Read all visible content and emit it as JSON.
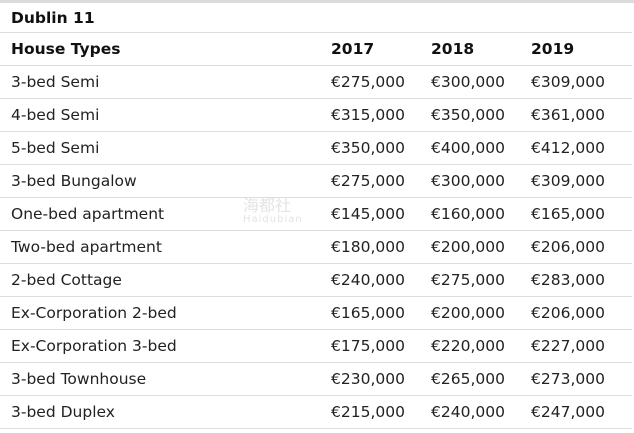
{
  "table": {
    "title": "Dublin 11",
    "headers": [
      "House Types",
      "2017",
      "2018",
      "2019"
    ],
    "rows": [
      [
        "3-bed Semi",
        "€275,000",
        "€300,000",
        "€309,000"
      ],
      [
        "4-bed Semi",
        "€315,000",
        "€350,000",
        "€361,000"
      ],
      [
        "5-bed Semi",
        "€350,000",
        "€400,000",
        "€412,000"
      ],
      [
        "3-bed Bungalow",
        "€275,000",
        "€300,000",
        "€309,000"
      ],
      [
        "One-bed apartment",
        "€145,000",
        "€160,000",
        "€165,000"
      ],
      [
        "Two-bed apartment",
        "€180,000",
        "€200,000",
        "€206,000"
      ],
      [
        "2-bed Cottage",
        "€240,000",
        "€275,000",
        "€283,000"
      ],
      [
        "Ex-Corporation 2-bed",
        "€165,000",
        "€200,000",
        "€206,000"
      ],
      [
        "Ex-Corporation 3-bed",
        "€175,000",
        "€220,000",
        "€227,000"
      ],
      [
        "3-bed Townhouse",
        "€230,000",
        "€265,000",
        "€273,000"
      ],
      [
        "3-bed Duplex",
        "€215,000",
        "€240,000",
        "€247,000"
      ]
    ]
  },
  "watermark": {
    "main": "海都社",
    "sub": "Haidubian"
  }
}
